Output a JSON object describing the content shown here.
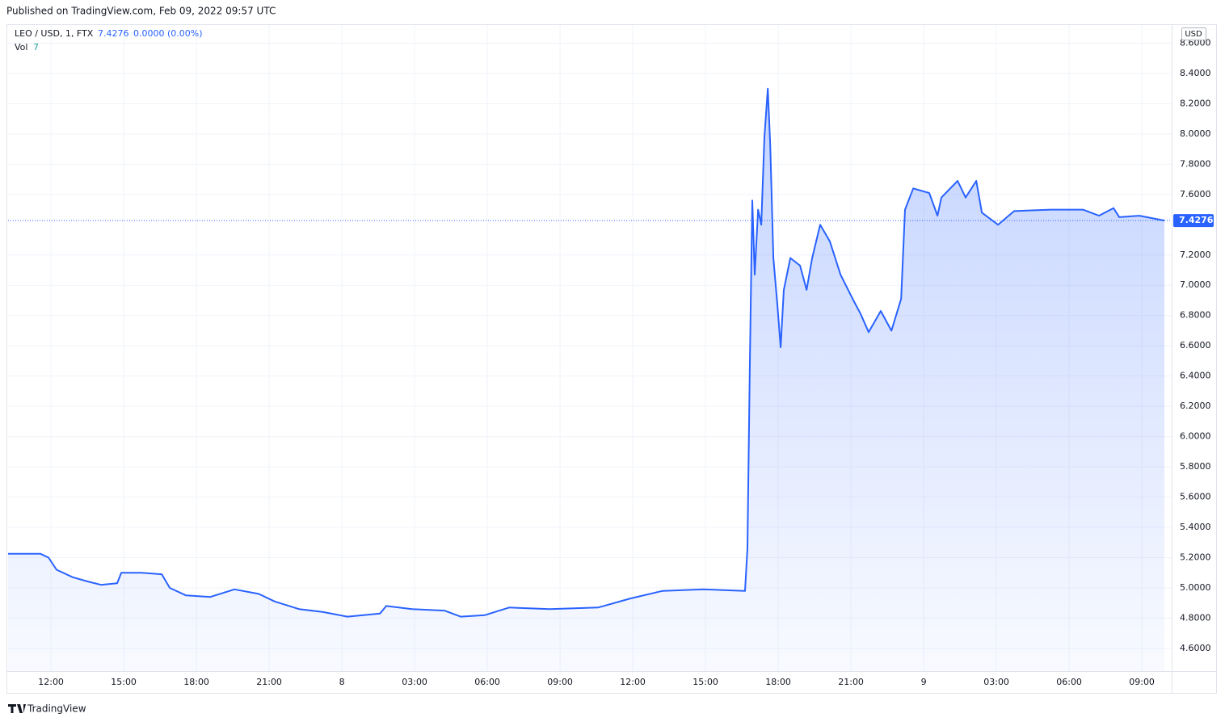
{
  "published": "Published on TradingView.com, Feb 09, 2022 09:57 UTC",
  "chart_data": {
    "type": "area",
    "symbol": "LEO / USD, 1, FTX",
    "last_price": 7.4276,
    "change": "0.0000 (0.00%)",
    "volume_label": "Vol",
    "volume_value": "7",
    "currency": "USD",
    "x": [
      10.23,
      11.57,
      11.9,
      12.23,
      12.9,
      13.57,
      14.07,
      14.73,
      14.9,
      15.73,
      16.57,
      16.9,
      17.57,
      18.57,
      19.57,
      20.57,
      21.23,
      22.23,
      23.23,
      24.23,
      25.57,
      25.83,
      26.9,
      28.23,
      28.9,
      29.9,
      30.9,
      32.57,
      34.57,
      35.9,
      37.23,
      38.9,
      40.63,
      40.73,
      40.83,
      40.93,
      41.03,
      41.17,
      41.3,
      41.43,
      41.57,
      41.67,
      41.8,
      41.97,
      42.1,
      42.23,
      42.5,
      42.9,
      43.17,
      43.4,
      43.73,
      44.13,
      44.57,
      45.07,
      45.4,
      45.73,
      46.23,
      46.67,
      47.07,
      47.23,
      47.57,
      48.23,
      48.57,
      48.73,
      49.4,
      49.73,
      50.17,
      50.4,
      51.07,
      51.73,
      53.23,
      54.57,
      55.23,
      55.83,
      56.07,
      56.9,
      57.93
    ],
    "series": [
      {
        "name": "LEO / USD",
        "color": "#2962ff",
        "values": [
          5.225,
          5.225,
          5.2,
          5.12,
          5.07,
          5.04,
          5.02,
          5.03,
          5.1,
          5.1,
          5.09,
          5.0,
          4.95,
          4.94,
          4.99,
          4.96,
          4.91,
          4.86,
          4.84,
          4.81,
          4.83,
          4.88,
          4.86,
          4.85,
          4.81,
          4.82,
          4.87,
          4.86,
          4.87,
          4.93,
          4.98,
          4.99,
          4.98,
          5.26,
          6.49,
          7.56,
          7.07,
          7.5,
          7.4,
          7.98,
          8.3,
          7.93,
          7.18,
          6.86,
          6.59,
          6.97,
          7.18,
          7.13,
          6.97,
          7.18,
          7.4,
          7.29,
          7.07,
          6.91,
          6.81,
          6.69,
          6.83,
          6.7,
          6.91,
          7.5,
          7.64,
          7.61,
          7.46,
          7.58,
          7.69,
          7.58,
          7.69,
          7.48,
          7.4,
          7.49,
          7.5,
          7.5,
          7.46,
          7.51,
          7.45,
          7.46,
          7.4276
        ]
      }
    ],
    "xlim": [
      10.23,
      58.23
    ],
    "xticks": [
      {
        "value": 12,
        "label": "12:00"
      },
      {
        "value": 15,
        "label": "15:00"
      },
      {
        "value": 18,
        "label": "18:00"
      },
      {
        "value": 21,
        "label": "21:00"
      },
      {
        "value": 24,
        "label": "8"
      },
      {
        "value": 27,
        "label": "03:00"
      },
      {
        "value": 30,
        "label": "06:00"
      },
      {
        "value": 33,
        "label": "09:00"
      },
      {
        "value": 36,
        "label": "12:00"
      },
      {
        "value": 39,
        "label": "15:00"
      },
      {
        "value": 42,
        "label": "18:00"
      },
      {
        "value": 45,
        "label": "21:00"
      },
      {
        "value": 48,
        "label": "9"
      },
      {
        "value": 51,
        "label": "03:00"
      },
      {
        "value": 54,
        "label": "06:00"
      },
      {
        "value": 57,
        "label": "09:00"
      }
    ],
    "ylim": [
      4.45,
      8.72
    ],
    "yticks": [
      {
        "value": 4.6,
        "label": "4.6000"
      },
      {
        "value": 4.8,
        "label": "4.8000"
      },
      {
        "value": 5.0,
        "label": "5.0000"
      },
      {
        "value": 5.2,
        "label": "5.2000"
      },
      {
        "value": 5.4,
        "label": "5.4000"
      },
      {
        "value": 5.6,
        "label": "5.6000"
      },
      {
        "value": 5.8,
        "label": "5.8000"
      },
      {
        "value": 6.0,
        "label": "6.0000"
      },
      {
        "value": 6.2,
        "label": "6.2000"
      },
      {
        "value": 6.4,
        "label": "6.4000"
      },
      {
        "value": 6.6,
        "label": "6.6000"
      },
      {
        "value": 6.8,
        "label": "6.8000"
      },
      {
        "value": 7.0,
        "label": "7.0000"
      },
      {
        "value": 7.2,
        "label": "7.2000"
      },
      {
        "value": 7.6,
        "label": "7.6000"
      },
      {
        "value": 7.8,
        "label": "7.8000"
      },
      {
        "value": 8.0,
        "label": "8.0000"
      },
      {
        "value": 8.2,
        "label": "8.2000"
      },
      {
        "value": 8.4,
        "label": "8.4000"
      },
      {
        "value": 8.6,
        "label": "8.6000"
      }
    ],
    "grid": true
  },
  "footer": "TradingView"
}
